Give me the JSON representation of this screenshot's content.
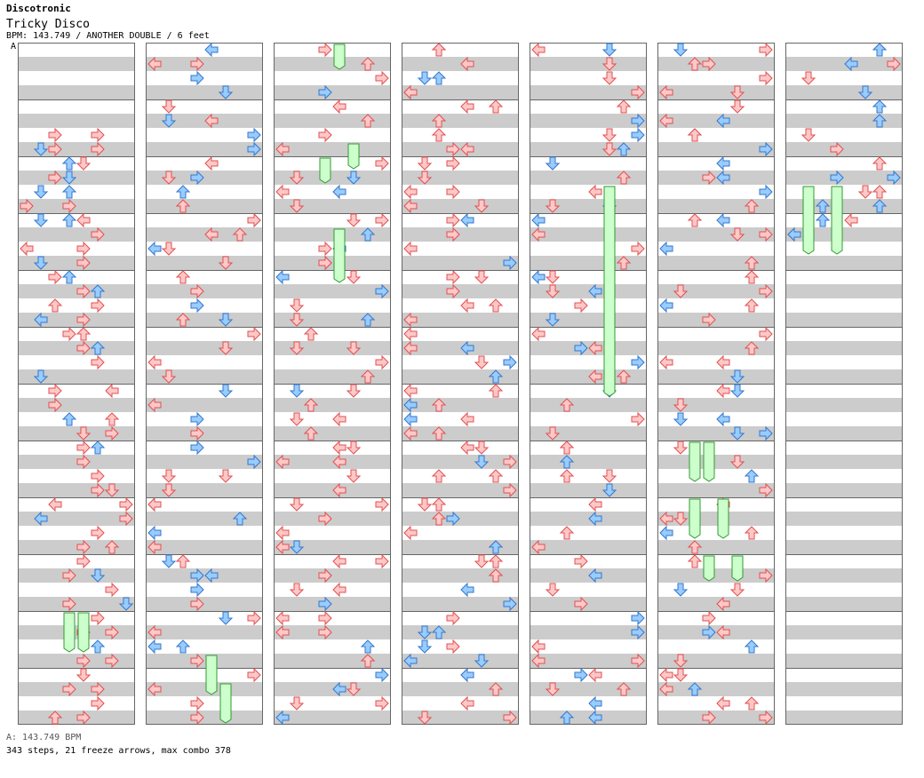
{
  "header": {
    "title": "Discotronic",
    "song": "Tricky Disco",
    "bpm_line": "BPM: 143.749 / ANOTHER DOUBLE / 6 feet",
    "marker": "A"
  },
  "footer": {
    "legend": "A: 143.749 BPM",
    "stats": "343 steps, 21 freeze arrows, max combo 378"
  },
  "colors": {
    "red_fill": "#ffc8c8",
    "red_stroke": "#e05050",
    "blue_fill": "#99ccff",
    "blue_stroke": "#3377cc",
    "freeze_fill": "#ccffcc",
    "freeze_stroke": "#339933",
    "row_gray": "#cccccc",
    "border": "#666666"
  },
  "chart": {
    "columns": 7,
    "measures_per_column": 12,
    "rows_per_measure": 4,
    "lanes": [
      "left",
      "down",
      "up",
      "right",
      "left",
      "down",
      "up",
      "right"
    ],
    "notes": [
      [
        [
          0,
          6,
          2,
          "R"
        ],
        [
          0,
          6,
          5,
          "R"
        ],
        [
          0,
          7,
          2,
          "R"
        ],
        [
          0,
          7,
          1,
          "D"
        ],
        [
          0,
          7,
          5,
          "R"
        ],
        [
          0,
          8,
          4,
          "D"
        ],
        [
          0,
          8,
          3,
          "U"
        ],
        [
          0,
          9,
          2,
          "R"
        ],
        [
          0,
          9,
          3,
          "D"
        ],
        [
          0,
          10,
          1,
          "D"
        ],
        [
          0,
          10,
          3,
          "U"
        ],
        [
          0,
          11,
          3,
          "R"
        ],
        [
          0,
          11,
          0,
          "R"
        ],
        [
          0,
          12,
          1,
          "D"
        ],
        [
          0,
          12,
          3,
          "U"
        ],
        [
          0,
          12,
          4,
          "L"
        ],
        [
          0,
          13,
          5,
          "R"
        ],
        [
          0,
          14,
          4,
          "R"
        ],
        [
          0,
          14,
          0,
          "L"
        ],
        [
          0,
          15,
          4,
          "R"
        ],
        [
          0,
          15,
          1,
          "D"
        ],
        [
          0,
          16,
          2,
          "R"
        ],
        [
          0,
          16,
          3,
          "U"
        ],
        [
          0,
          17,
          4,
          "R"
        ],
        [
          0,
          17,
          5,
          "U"
        ],
        [
          0,
          18,
          5,
          "R"
        ],
        [
          0,
          18,
          2,
          "U"
        ],
        [
          0,
          19,
          4,
          "R"
        ],
        [
          0,
          19,
          1,
          "L"
        ],
        [
          0,
          20,
          3,
          "R"
        ],
        [
          0,
          20,
          4,
          "U"
        ],
        [
          0,
          21,
          4,
          "R"
        ],
        [
          0,
          21,
          5,
          "U"
        ],
        [
          0,
          22,
          5,
          "R"
        ],
        [
          0,
          23,
          1,
          "D"
        ],
        [
          0,
          24,
          2,
          "R"
        ],
        [
          0,
          24,
          6,
          "L"
        ],
        [
          0,
          25,
          2,
          "R"
        ],
        [
          0,
          26,
          3,
          "U"
        ],
        [
          0,
          26,
          6,
          "U"
        ],
        [
          0,
          27,
          6,
          "R"
        ],
        [
          0,
          27,
          4,
          "D"
        ],
        [
          0,
          28,
          4,
          "R"
        ],
        [
          0,
          28,
          5,
          "U"
        ],
        [
          0,
          29,
          4,
          "R"
        ],
        [
          0,
          30,
          5,
          "R"
        ],
        [
          0,
          31,
          6,
          "D"
        ],
        [
          0,
          31,
          5,
          "R"
        ],
        [
          0,
          32,
          2,
          "L"
        ],
        [
          0,
          32,
          7,
          "R"
        ],
        [
          0,
          33,
          1,
          "L"
        ],
        [
          0,
          33,
          7,
          "R"
        ],
        [
          0,
          34,
          5,
          "R"
        ],
        [
          0,
          35,
          4,
          "R"
        ],
        [
          0,
          35,
          6,
          "U"
        ],
        [
          0,
          36,
          4,
          "R"
        ],
        [
          0,
          37,
          3,
          "R"
        ],
        [
          0,
          37,
          5,
          "D"
        ],
        [
          0,
          38,
          6,
          "R"
        ],
        [
          0,
          39,
          3,
          "R"
        ],
        [
          0,
          39,
          7,
          "D"
        ],
        [
          0,
          40,
          5,
          "R"
        ],
        [
          0,
          41,
          4,
          "R"
        ],
        [
          0,
          41,
          6,
          "R"
        ],
        [
          0,
          42,
          5,
          "U"
        ],
        [
          0,
          43,
          4,
          "R"
        ],
        [
          0,
          43,
          6,
          "R"
        ],
        [
          0,
          44,
          4,
          "D"
        ],
        [
          0,
          45,
          3,
          "R"
        ],
        [
          0,
          45,
          5,
          "R"
        ],
        [
          0,
          46,
          5,
          "R"
        ],
        [
          0,
          47,
          4,
          "R"
        ],
        [
          0,
          47,
          2,
          "U"
        ]
      ]
    ],
    "freezes": [
      [
        0,
        40,
        42,
        3
      ],
      [
        0,
        40,
        42,
        4
      ]
    ]
  }
}
